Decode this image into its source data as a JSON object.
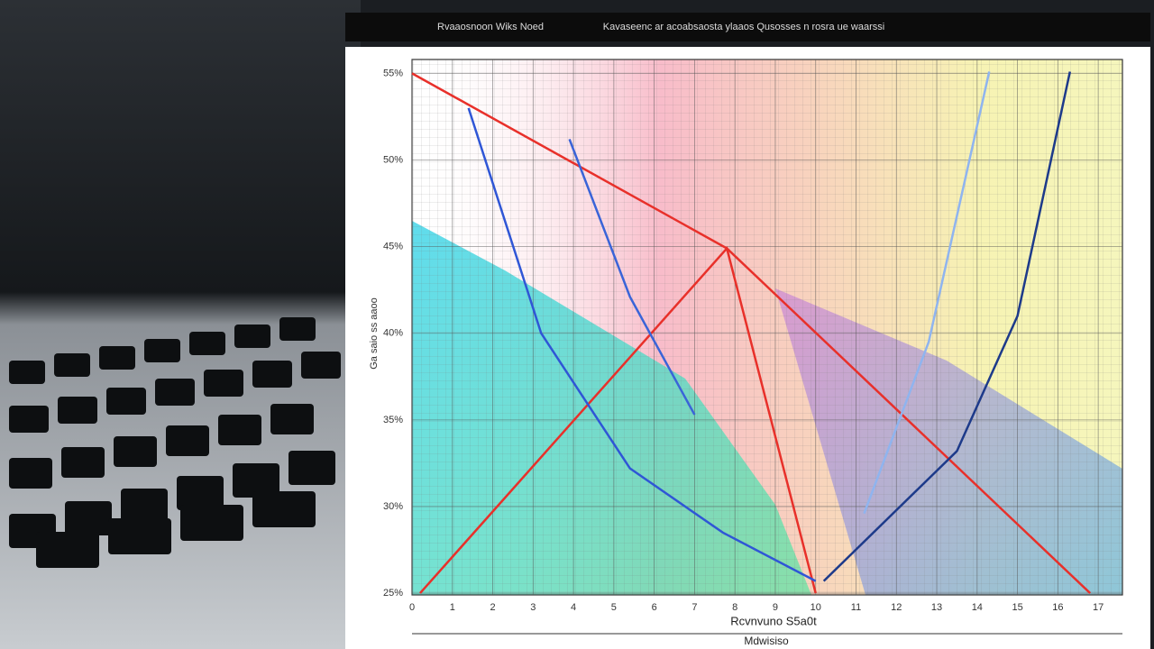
{
  "chart_data": {
    "type": "line",
    "title": "Rvaaosnoon Wiks Noed",
    "subtitle": "Kavaseenc ar acoabsaosta ylaaos Qusosses n rosra ue waarssi",
    "x_label": "Rcvnvuno S5a0t",
    "footer_label": "Mdwisiso",
    "y_label": "Ga saio ss aaoo",
    "xlim": [
      0,
      17.6
    ],
    "ylim": [
      24.9,
      55.8
    ],
    "xticks": [
      0,
      1,
      2,
      3,
      4,
      5,
      6,
      7,
      8,
      9,
      10,
      11,
      12,
      13,
      14,
      15,
      16,
      17
    ],
    "yticks": [
      {
        "value": 55,
        "label": "55%"
      },
      {
        "value": 50,
        "label": "50%"
      },
      {
        "value": 45,
        "label": "45%"
      },
      {
        "value": 40,
        "label": "40%"
      },
      {
        "value": 35,
        "label": "35%"
      },
      {
        "value": 30,
        "label": "30%"
      },
      {
        "value": 25,
        "label": "25%"
      }
    ],
    "grid": true,
    "series": [
      {
        "color": "#e8302a",
        "x": [
          0,
          7.8,
          16.8
        ],
        "values": [
          55,
          44.9,
          25
        ]
      },
      {
        "color": "#e8302a",
        "x": [
          0.2,
          7.8,
          10.0
        ],
        "values": [
          25,
          44.9,
          25
        ]
      },
      {
        "color": "#2f56d6",
        "x": [
          1.4,
          3.2,
          5.4,
          7.7,
          10.0
        ],
        "values": [
          53.0,
          40.0,
          32.2,
          28.5,
          25.7
        ]
      },
      {
        "color": "#3a64d8",
        "x": [
          3.9,
          5.4,
          7.0
        ],
        "values": [
          51.2,
          42.1,
          35.3
        ]
      },
      {
        "color": "#1d3a8a",
        "x": [
          10.2,
          13.5,
          15.0,
          16.3
        ],
        "values": [
          25.7,
          33.2,
          41.0,
          55.1
        ]
      },
      {
        "color": "#8fb4ef",
        "x": [
          11.2,
          12.8,
          14.3
        ],
        "values": [
          29.6,
          39.5,
          55.1
        ]
      }
    ]
  }
}
